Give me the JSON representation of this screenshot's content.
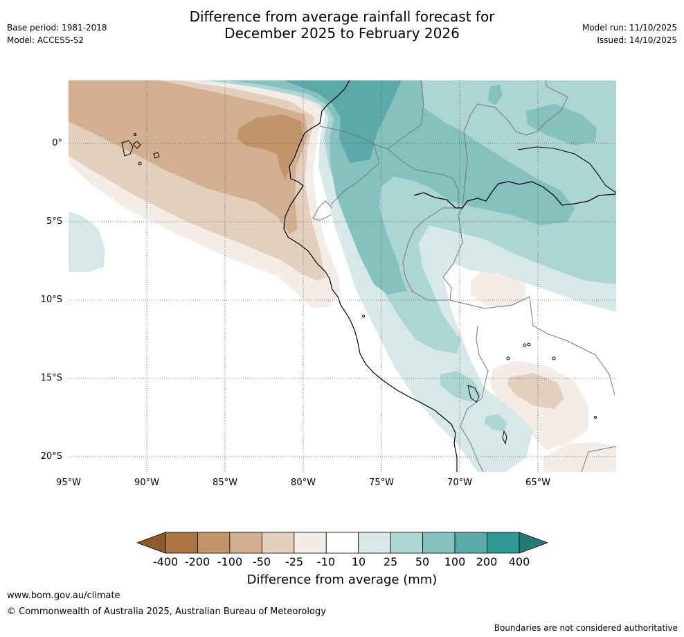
{
  "title": {
    "line1": "Difference from average rainfall forecast for",
    "line2": "December 2025 to February 2026"
  },
  "meta": {
    "base_period": "Base period: 1981-2018",
    "model": "Model: ACCESS-S2",
    "model_run": "Model run: 11/10/2025",
    "issued": "Issued: 14/10/2025"
  },
  "map": {
    "lat_labels": [
      "0°",
      "5°S",
      "10°S",
      "15°S",
      "20°S"
    ],
    "lon_labels": [
      "95°W",
      "90°W",
      "85°W",
      "80°W",
      "75°W",
      "70°W",
      "65°W"
    ]
  },
  "colorbar": {
    "title": "Difference from average (mm)",
    "ticks": [
      "-400",
      "-200",
      "-100",
      "-50",
      "-25",
      "-10",
      "10",
      "25",
      "50",
      "100",
      "200",
      "400"
    ],
    "colors": {
      "ext_low": "#8d5a2b",
      "b1": "#ab7641",
      "b2": "#c09468",
      "b3": "#d2b08f",
      "b4": "#e3cfbd",
      "b5": "#f4ece6",
      "b6": "#ffffff",
      "b7": "#d6e9e8",
      "b8": "#acd5d3",
      "b9": "#84c1bf",
      "b10": "#5aaba8",
      "b11": "#2f9892",
      "ext_high": "#257a75"
    }
  },
  "footer": {
    "url": "www.bom.gov.au/climate",
    "copyright": "© Commonwealth of Australia 2025, Australian Bureau of Meteorology",
    "note": "Boundaries are not considered authoritative"
  }
}
